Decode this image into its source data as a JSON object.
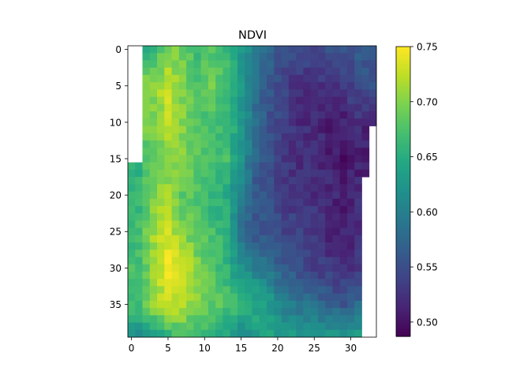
{
  "chart_data": {
    "type": "heatmap",
    "title": "NDVI",
    "xlabel": "",
    "ylabel": "",
    "xlim": [
      -0.5,
      33.5
    ],
    "ylim": [
      39.5,
      -0.5
    ],
    "x_ticks": [
      "0",
      "5",
      "10",
      "15",
      "20",
      "25",
      "30"
    ],
    "y_ticks": [
      "0",
      "5",
      "10",
      "15",
      "20",
      "25",
      "30",
      "35"
    ],
    "colorbar": {
      "colormap": "viridis",
      "vmin": 0.487,
      "vmax": 0.75,
      "ticks": [
        "0.50",
        "0.55",
        "0.60",
        "0.65",
        "0.70",
        "0.75"
      ]
    },
    "grid": {
      "rows": 40,
      "cols": 34,
      "missing_value": null
    },
    "anchors": {
      "description_rows": "approximate NDVI values per row at key columns",
      "cols": [
        1,
        3,
        5,
        7,
        9,
        11,
        13,
        15,
        17,
        19,
        21,
        23,
        25,
        27,
        29,
        31,
        33
      ],
      "rows": {
        "0": [
          null,
          0.66,
          0.7,
          0.69,
          0.66,
          0.68,
          0.66,
          0.63,
          0.59,
          0.57,
          0.55,
          0.55,
          0.54,
          0.55,
          0.55,
          0.56,
          0.56
        ],
        "5": [
          null,
          0.7,
          0.73,
          0.7,
          0.68,
          0.69,
          0.67,
          0.63,
          0.58,
          0.56,
          0.54,
          0.52,
          0.53,
          0.52,
          0.53,
          0.55,
          0.55
        ],
        "10": [
          null,
          0.7,
          0.72,
          0.7,
          0.68,
          0.67,
          0.67,
          0.63,
          0.58,
          0.55,
          0.54,
          0.52,
          0.52,
          0.51,
          0.51,
          0.52,
          0.51
        ],
        "15": [
          0.65,
          0.69,
          0.7,
          0.7,
          0.68,
          0.67,
          0.67,
          0.62,
          0.57,
          0.55,
          0.53,
          0.52,
          0.52,
          0.51,
          0.5,
          0.51,
          null
        ],
        "20": [
          0.66,
          0.7,
          0.71,
          0.68,
          0.68,
          0.66,
          0.65,
          0.6,
          0.56,
          0.55,
          0.53,
          0.53,
          0.52,
          0.52,
          0.51,
          0.52,
          null
        ],
        "25": [
          0.67,
          0.71,
          0.73,
          0.7,
          0.68,
          0.67,
          0.66,
          0.58,
          0.56,
          0.55,
          0.54,
          0.54,
          0.53,
          0.51,
          0.51,
          0.52,
          null
        ],
        "30": [
          0.67,
          0.71,
          0.74,
          0.74,
          0.7,
          0.68,
          0.66,
          0.62,
          0.6,
          0.58,
          0.56,
          0.55,
          0.54,
          0.53,
          0.52,
          0.53,
          null
        ],
        "35": [
          0.67,
          0.71,
          0.73,
          0.72,
          0.7,
          0.68,
          0.68,
          0.66,
          0.65,
          0.63,
          0.6,
          0.59,
          0.58,
          0.57,
          0.56,
          0.58,
          null
        ],
        "39": [
          0.62,
          0.64,
          0.66,
          0.68,
          0.66,
          0.66,
          0.64,
          0.62,
          0.63,
          0.64,
          0.63,
          0.62,
          0.62,
          0.62,
          0.63,
          0.63,
          null
        ]
      }
    }
  }
}
